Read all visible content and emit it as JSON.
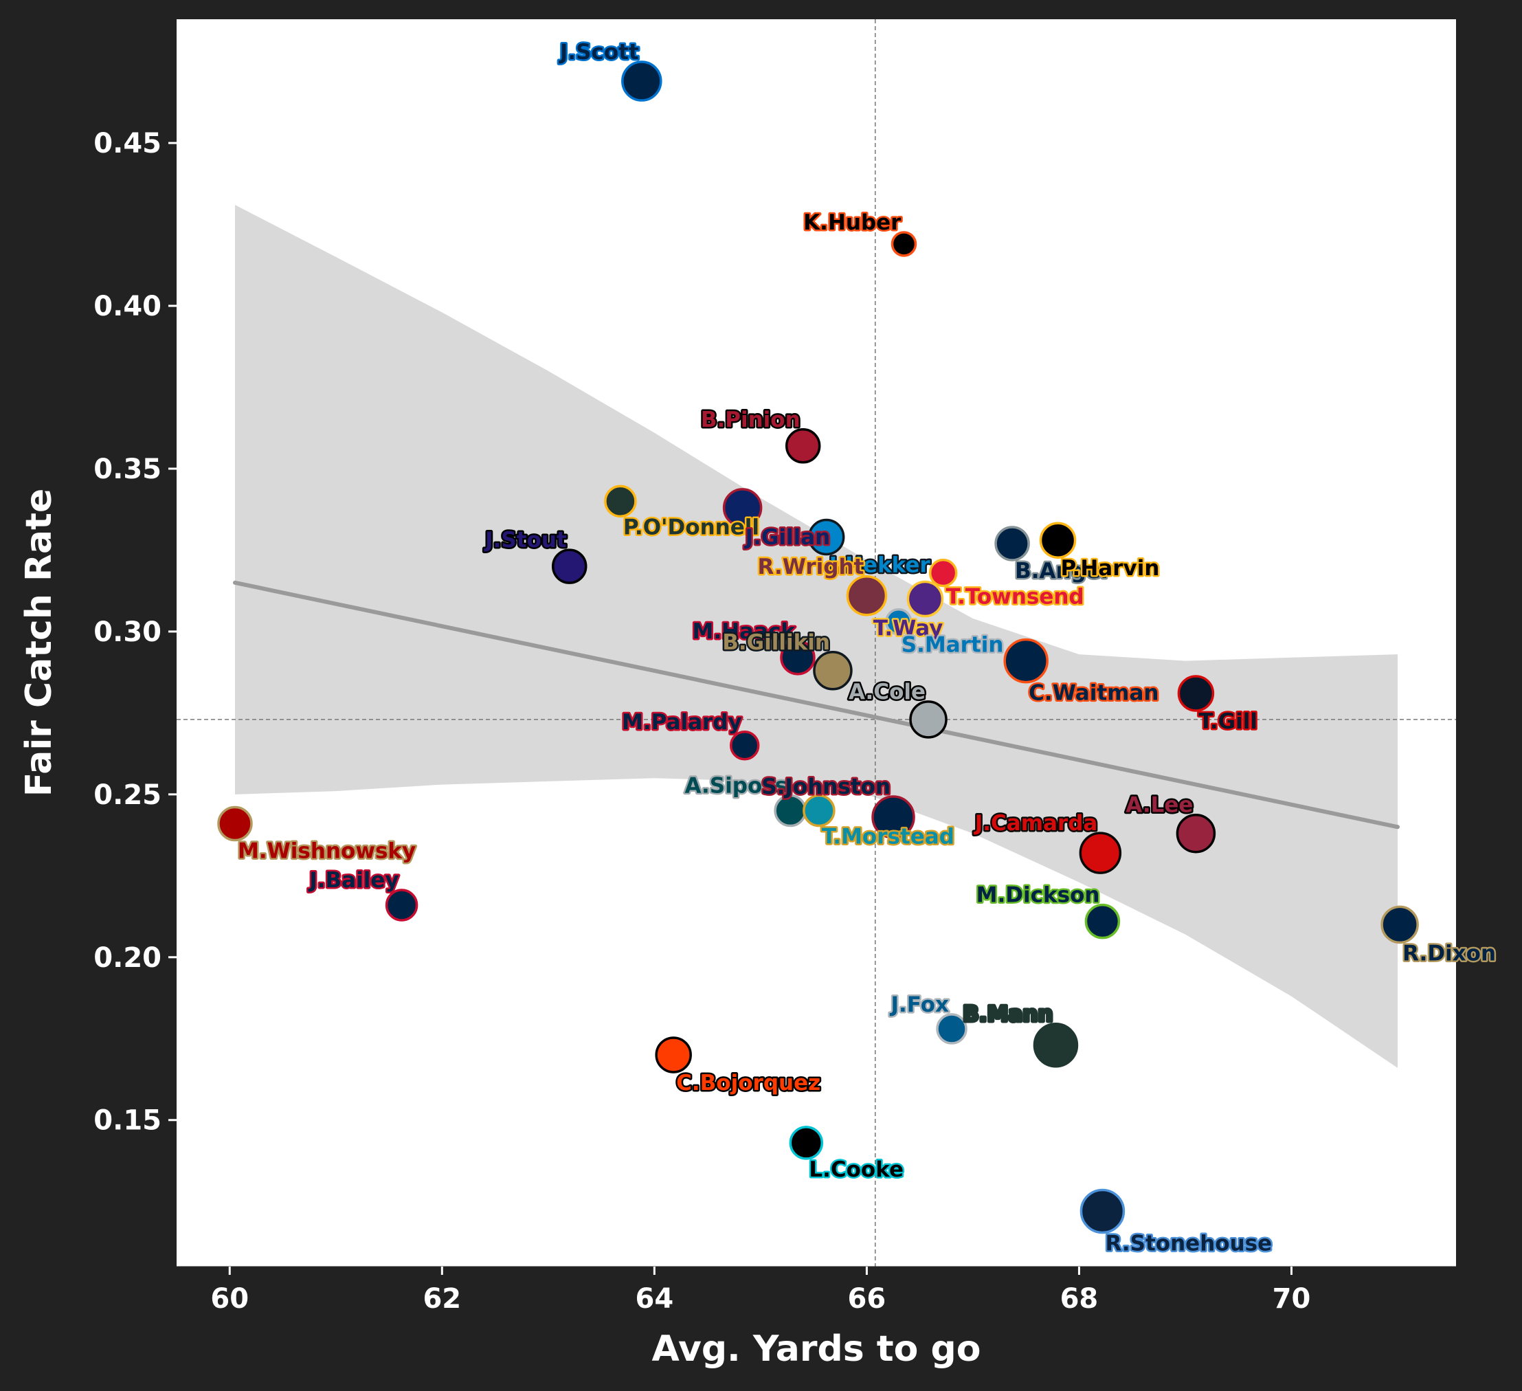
{
  "chart_data": {
    "type": "scatter",
    "title": "",
    "xlabel": "Avg. Yards to go",
    "ylabel": "Fair Catch Rate",
    "xlim": [
      59.5,
      71.55
    ],
    "ylim": [
      0.105,
      0.488
    ],
    "x_ticks": [
      60,
      62,
      64,
      66,
      68,
      70
    ],
    "y_ticks": [
      0.15,
      0.2,
      0.25,
      0.3,
      0.35,
      0.4,
      0.45
    ],
    "x_tick_labels": [
      "60",
      "62",
      "64",
      "66",
      "68",
      "70"
    ],
    "y_tick_labels": [
      "0.15",
      "0.20",
      "0.25",
      "0.30",
      "0.35",
      "0.40",
      "0.45"
    ],
    "grid": false,
    "mean_lines": {
      "x": 66.08,
      "y": 0.273
    },
    "regression": {
      "x_start": 60.05,
      "y_start": 0.315,
      "x_end": 71.0,
      "y_end": 0.24,
      "color": "#9a9a9a",
      "band": [
        {
          "x": 60.05,
          "lo": 0.25,
          "hi": 0.431
        },
        {
          "x": 61.0,
          "lo": 0.251,
          "hi": 0.415
        },
        {
          "x": 62.0,
          "lo": 0.253,
          "hi": 0.398
        },
        {
          "x": 63.0,
          "lo": 0.254,
          "hi": 0.38
        },
        {
          "x": 64.0,
          "lo": 0.255,
          "hi": 0.361
        },
        {
          "x": 65.0,
          "lo": 0.254,
          "hi": 0.341
        },
        {
          "x": 66.0,
          "lo": 0.25,
          "hi": 0.322
        },
        {
          "x": 67.0,
          "lo": 0.238,
          "hi": 0.304
        },
        {
          "x": 68.0,
          "lo": 0.223,
          "hi": 0.293
        },
        {
          "x": 69.0,
          "lo": 0.207,
          "hi": 0.291
        },
        {
          "x": 70.0,
          "lo": 0.188,
          "hi": 0.292
        },
        {
          "x": 71.0,
          "lo": 0.166,
          "hi": 0.293
        }
      ]
    },
    "points": [
      {
        "name": "J.Scott",
        "x": 63.88,
        "y": 0.469,
        "fill": "#002244",
        "edge": "#0073cf",
        "r": 28,
        "label_pos": "above-left"
      },
      {
        "name": "K.Huber",
        "x": 66.35,
        "y": 0.419,
        "fill": "#000000",
        "edge": "#fb4f14",
        "r": 17,
        "label_pos": "above-left"
      },
      {
        "name": "B.Pinion",
        "x": 65.4,
        "y": 0.357,
        "fill": "#a71930",
        "edge": "#000000",
        "r": 24,
        "label_pos": "above-left"
      },
      {
        "name": "P.O'Donnell",
        "x": 63.68,
        "y": 0.34,
        "fill": "#203731",
        "edge": "#ffb612",
        "r": 22,
        "label_pos": "below-right"
      },
      {
        "name": "J.Gillan",
        "x": 64.83,
        "y": 0.338,
        "fill": "#0b2265",
        "edge": "#a71930",
        "r": 27,
        "label_pos": "below-right"
      },
      {
        "name": "J.Hekker",
        "x": 65.62,
        "y": 0.329,
        "fill": "#0085ca",
        "edge": "#101820",
        "r": 25,
        "label_pos": "below-right"
      },
      {
        "name": "B.Anger",
        "x": 67.37,
        "y": 0.327,
        "fill": "#002244",
        "edge": "#869397",
        "r": 24,
        "label_pos": "below-right"
      },
      {
        "name": "P.Harvin",
        "x": 67.8,
        "y": 0.328,
        "fill": "#000000",
        "edge": "#ffb612",
        "r": 25,
        "label_pos": "below-right"
      },
      {
        "name": "J.Stout",
        "x": 63.2,
        "y": 0.32,
        "fill": "#241773",
        "edge": "#000000",
        "r": 24,
        "label_pos": "above-left"
      },
      {
        "name": "T.Townsend",
        "x": 66.72,
        "y": 0.318,
        "fill": "#e31837",
        "edge": "#ffb81c",
        "r": 19,
        "label_pos": "below-right"
      },
      {
        "name": "R.Wright",
        "x": 66.0,
        "y": 0.311,
        "fill": "#773141",
        "edge": "#ffb612",
        "r": 28,
        "label_pos": "above-left"
      },
      {
        "name": "T.Way",
        "x": 66.55,
        "y": 0.31,
        "fill": "#4f2683",
        "edge": "#ffc62f",
        "r": 25,
        "label_pos": "below-left"
      },
      {
        "name": "S.Martin",
        "x": 66.3,
        "y": 0.303,
        "fill": "#0076b6",
        "edge": "#b0b7bc",
        "r": 18,
        "label_pos": "below-right"
      },
      {
        "name": "M.Haack",
        "x": 65.35,
        "y": 0.292,
        "fill": "#002244",
        "edge": "#c60c30",
        "r": 24,
        "label_pos": "above-left"
      },
      {
        "name": "B.Gillikin",
        "x": 65.68,
        "y": 0.288,
        "fill": "#9f8958",
        "edge": "#101820",
        "r": 27,
        "label_pos": "above-left"
      },
      {
        "name": "C.Waitman",
        "x": 67.5,
        "y": 0.291,
        "fill": "#002244",
        "edge": "#fb4f14",
        "r": 31,
        "label_pos": "below-right"
      },
      {
        "name": "T.Gill",
        "x": 69.1,
        "y": 0.281,
        "fill": "#0a162a",
        "edge": "#d50a0a",
        "r": 25,
        "label_pos": "below-right"
      },
      {
        "name": "A.Cole",
        "x": 66.58,
        "y": 0.273,
        "fill": "#a5acaf",
        "edge": "#000000",
        "r": 26,
        "label_pos": "above-left"
      },
      {
        "name": "M.Palardy",
        "x": 64.85,
        "y": 0.265,
        "fill": "#002244",
        "edge": "#c8102e",
        "r": 20,
        "label_pos": "above-left"
      },
      {
        "name": "A.Siposs",
        "x": 65.28,
        "y": 0.245,
        "fill": "#004c54",
        "edge": "#a5acaf",
        "r": 22,
        "label_pos": "above-left"
      },
      {
        "name": "T.Morstead",
        "x": 65.55,
        "y": 0.245,
        "fill": "#0b8fa6",
        "edge": "#d7a22a",
        "r": 22,
        "label_pos": "below-right"
      },
      {
        "name": "S.Johnston",
        "x": 66.25,
        "y": 0.243,
        "fill": "#002244",
        "edge": "#a71930",
        "r": 30,
        "label_pos": "above-left"
      },
      {
        "name": "M.Wishnowsky",
        "x": 60.05,
        "y": 0.241,
        "fill": "#aa0000",
        "edge": "#b3995d",
        "r": 24,
        "label_pos": "below-right"
      },
      {
        "name": "J.Camarda",
        "x": 68.2,
        "y": 0.232,
        "fill": "#d50a0a",
        "edge": "#0a0a08",
        "r": 29,
        "label_pos": "above-left"
      },
      {
        "name": "A.Lee",
        "x": 69.1,
        "y": 0.238,
        "fill": "#97233f",
        "edge": "#000000",
        "r": 27,
        "label_pos": "above-left"
      },
      {
        "name": "J.Bailey",
        "x": 61.62,
        "y": 0.216,
        "fill": "#002244",
        "edge": "#c60c30",
        "r": 22,
        "label_pos": "above-left"
      },
      {
        "name": "M.Dickson",
        "x": 68.22,
        "y": 0.211,
        "fill": "#002244",
        "edge": "#69be28",
        "r": 24,
        "label_pos": "above-left"
      },
      {
        "name": "R.Dixon",
        "x": 71.02,
        "y": 0.21,
        "fill": "#002244",
        "edge": "#b3995d",
        "r": 26,
        "label_pos": "below-right"
      },
      {
        "name": "J.Fox",
        "x": 66.8,
        "y": 0.178,
        "fill": "#005a8b",
        "edge": "#b0b7bc",
        "r": 21,
        "label_pos": "above-left"
      },
      {
        "name": "B.Mann",
        "x": 67.78,
        "y": 0.173,
        "fill": "#203731",
        "edge": "#203731",
        "r": 31,
        "label_pos": "above-left"
      },
      {
        "name": "C.Bojorquez",
        "x": 64.18,
        "y": 0.17,
        "fill": "#ff3c00",
        "edge": "#000000",
        "r": 25,
        "label_pos": "below-right"
      },
      {
        "name": "L.Cooke",
        "x": 65.43,
        "y": 0.143,
        "fill": "#000000",
        "edge": "#00c4d4",
        "r": 23,
        "label_pos": "below-right"
      },
      {
        "name": "R.Stonehouse",
        "x": 68.22,
        "y": 0.122,
        "fill": "#0c2340",
        "edge": "#4b92db",
        "r": 31,
        "label_pos": "below-right"
      }
    ]
  }
}
